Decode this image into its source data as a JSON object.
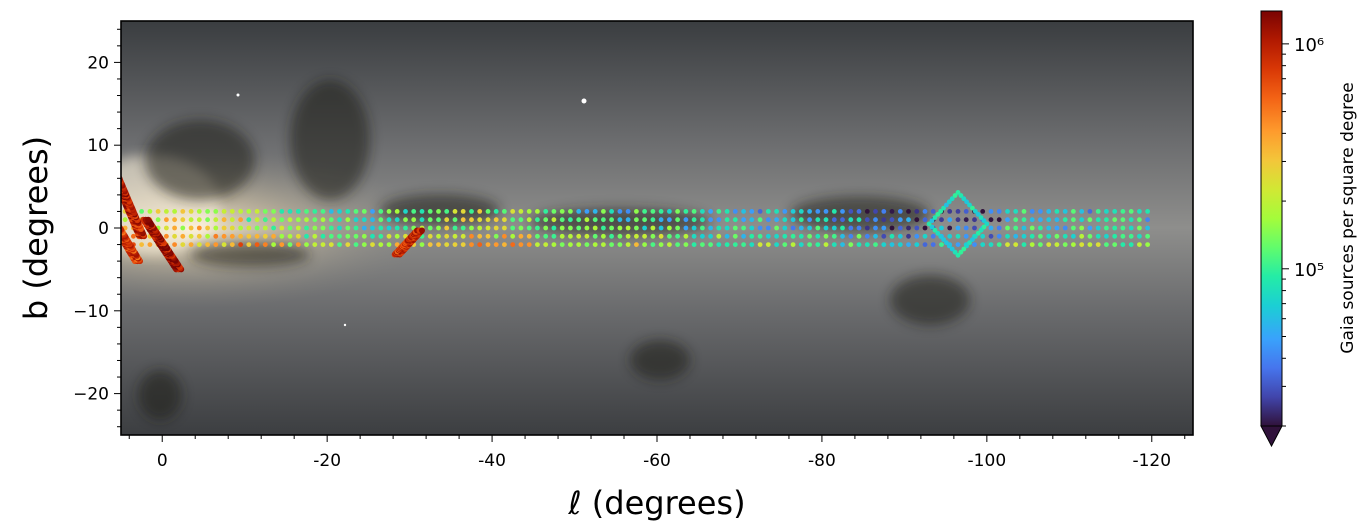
{
  "chart_data": {
    "type": "scatter",
    "xlabel": "ℓ (degrees)",
    "ylabel": "b (degrees)",
    "xlim": [
      5,
      -125
    ],
    "ylim": [
      -25,
      25
    ],
    "x_ticks": [
      0,
      -20,
      -40,
      -60,
      -80,
      -100,
      -120
    ],
    "x_tick_labels": [
      "0",
      "-20",
      "-40",
      "-60",
      "-80",
      "-100",
      "-120"
    ],
    "y_ticks": [
      20,
      10,
      0,
      -10,
      -20
    ],
    "y_tick_labels": [
      "20",
      "10",
      "0",
      "−10",
      "−20"
    ],
    "background": "Gaia all-sky star map of the Galactic plane",
    "colormap": "turbo",
    "color_scale": "log",
    "colorbar": {
      "label": "Gaia sources per square degree",
      "range": [
        20000,
        1400000
      ],
      "tick_labels": [
        "10⁵",
        "10⁶"
      ],
      "tick_values": [
        100000,
        1000000
      ],
      "extend": "min"
    },
    "main_grid": {
      "l_range": [
        6.5,
        -120
      ],
      "l_step": 1,
      "b_rows": [
        2,
        1,
        0,
        -1,
        -2
      ],
      "description": "survey fields across the Galactic plane, colored by stellar density"
    },
    "strips": [
      {
        "from": [
          -2,
          -5
        ],
        "to": [
          2,
          1
        ],
        "density": 1200000
      },
      {
        "from": [
          2.5,
          -1
        ],
        "to": [
          5.5,
          6
        ],
        "density": 1000000
      },
      {
        "from": [
          3,
          -4
        ],
        "to": [
          6.8,
          2.3
        ],
        "density": 800000
      },
      {
        "from": [
          -28.5,
          -3.2
        ],
        "to": [
          -31.2,
          -0.3
        ],
        "density": 900000
      }
    ],
    "diamond": {
      "center": [
        -96.5,
        0.5
      ],
      "half_width": 3.5,
      "half_height": 3.8
    }
  }
}
